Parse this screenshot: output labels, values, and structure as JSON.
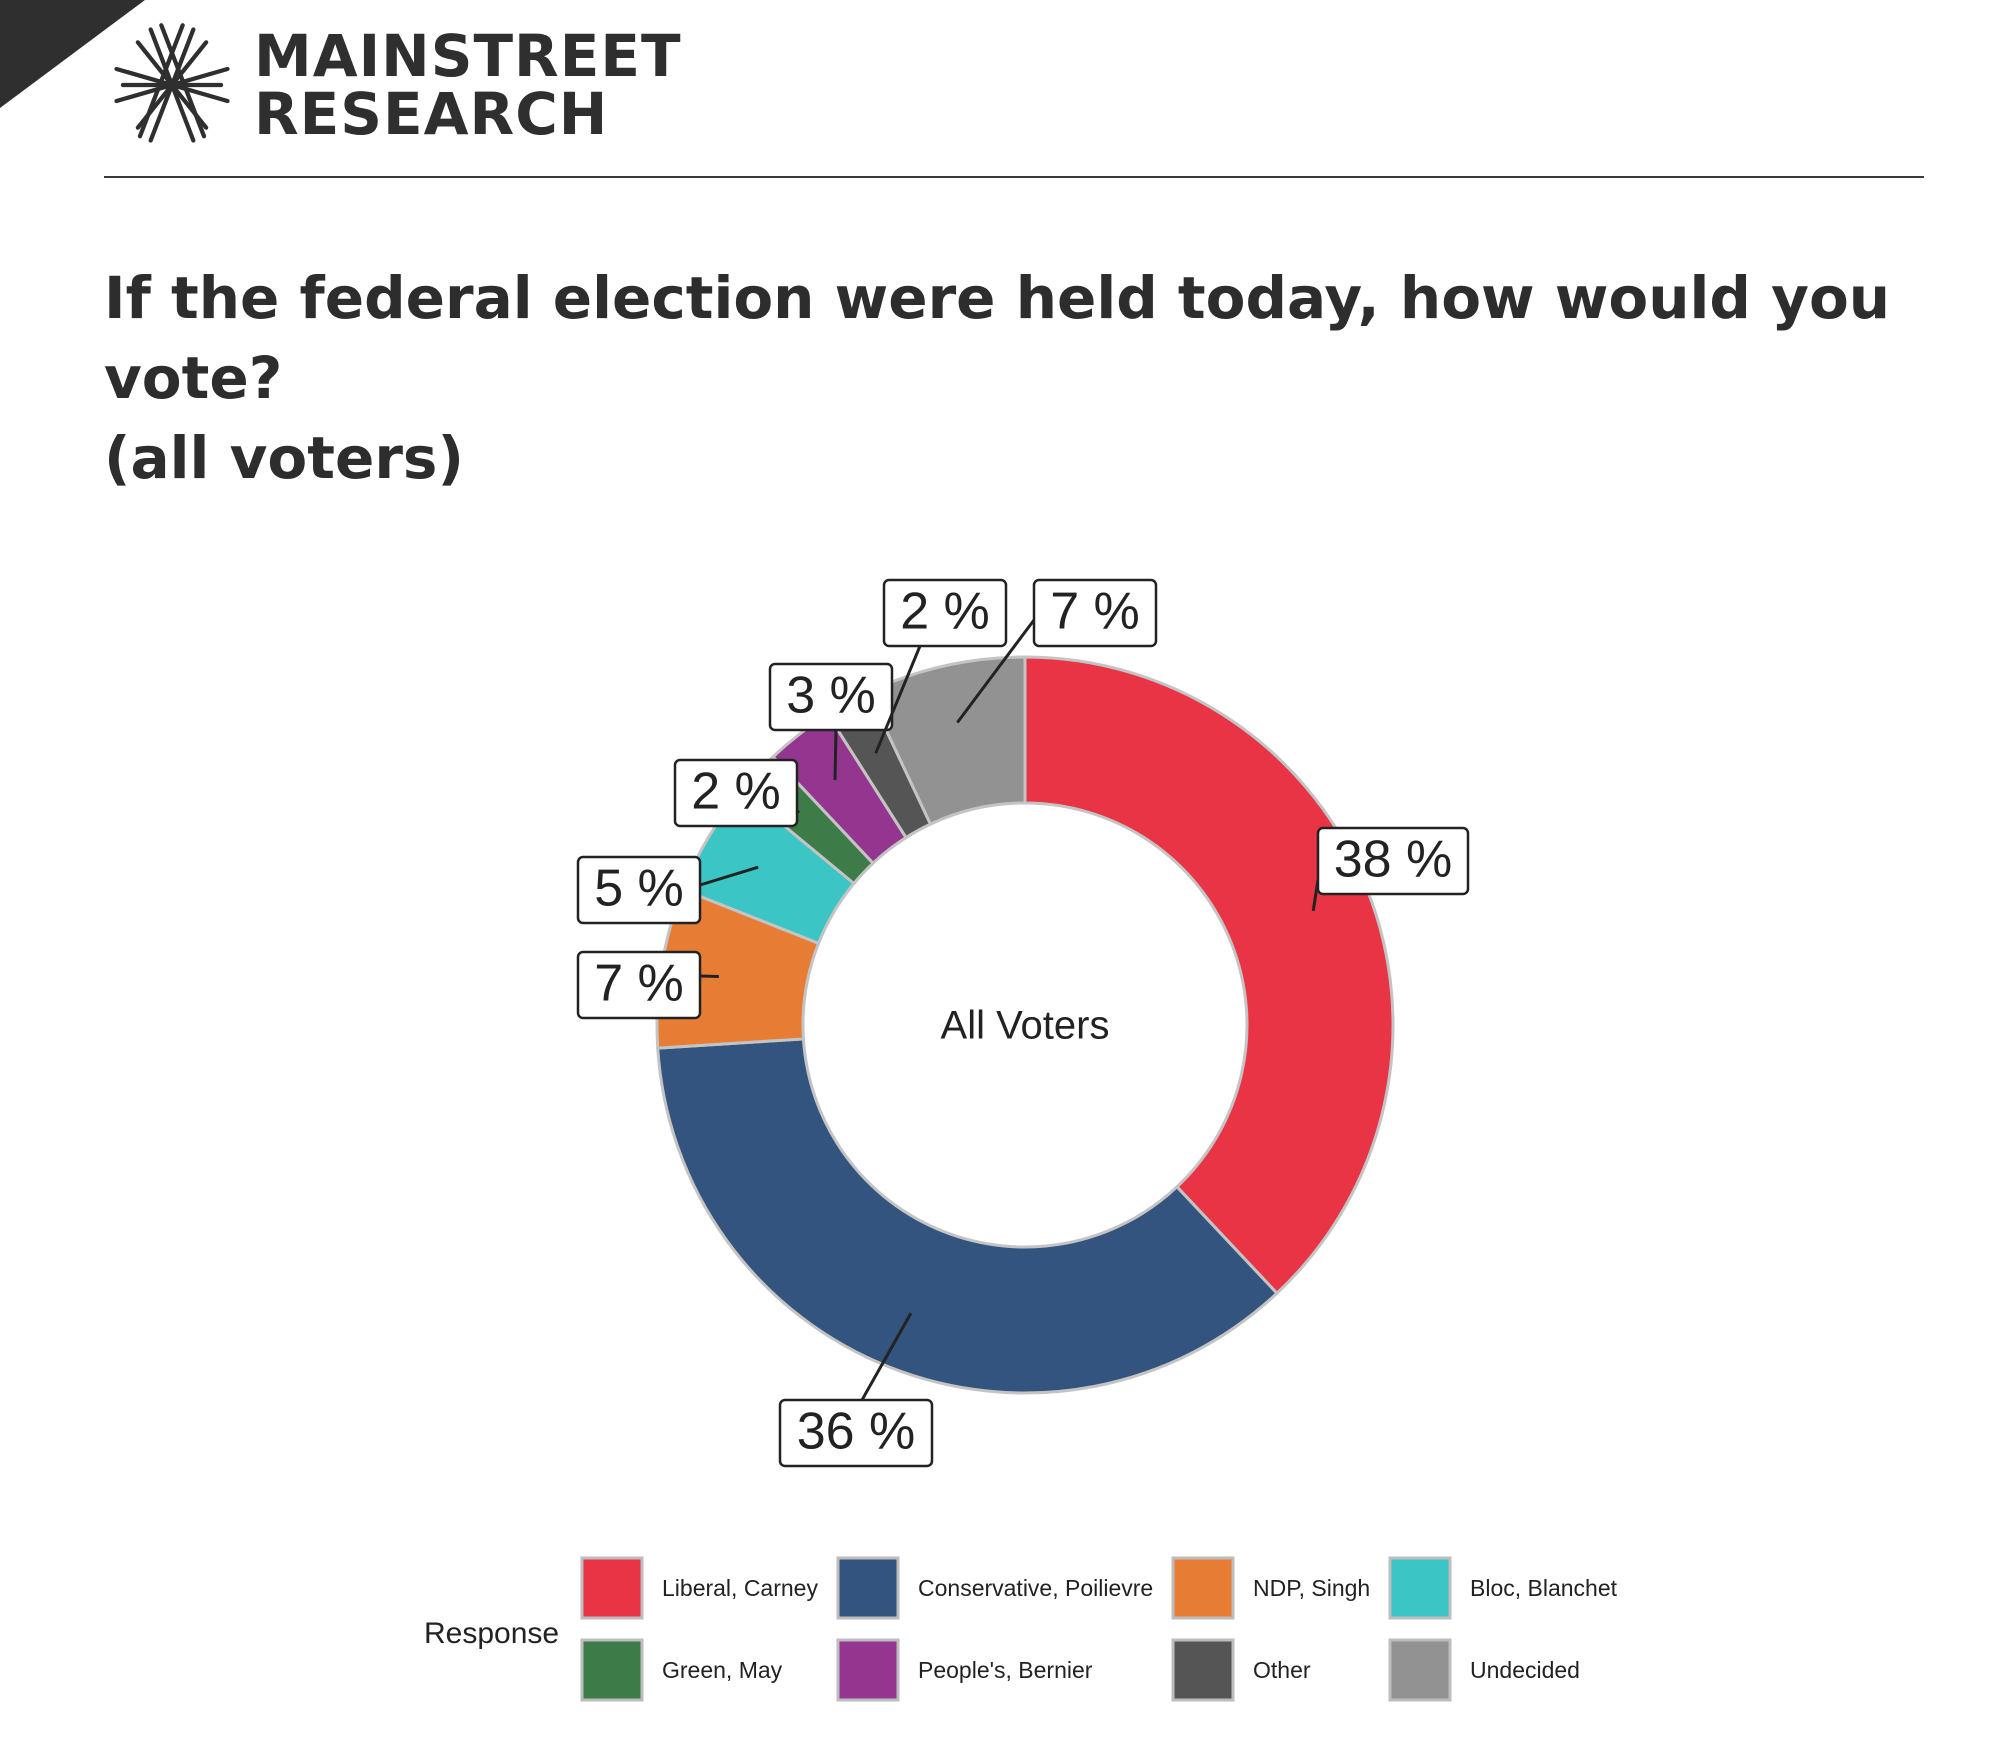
{
  "header": {
    "brand_line1": "MAINSTREET",
    "brand_line2": "RESEARCH"
  },
  "title_line1": "If the federal election were held today, how would you vote?",
  "title_line2": "(all voters)",
  "chart_data": {
    "type": "pie",
    "center_label": "All Voters",
    "legend_title": "Response",
    "legend_placement": "bottom",
    "slices": [
      {
        "name": "Liberal, Carney",
        "value": 38,
        "label": "38 %",
        "color": "#e83445"
      },
      {
        "name": "Conservative, Poilievre",
        "value": 36,
        "label": "36 %",
        "color": "#32547f"
      },
      {
        "name": "NDP, Singh",
        "value": 7,
        "label": "7 %",
        "color": "#e77c35"
      },
      {
        "name": "Bloc, Blanchet",
        "value": 5,
        "label": "5 %",
        "color": "#3cc5c5"
      },
      {
        "name": "Green, May",
        "value": 2,
        "label": "2 %",
        "color": "#3d7b48"
      },
      {
        "name": "People's, Bernier",
        "value": 3,
        "label": "3 %",
        "color": "#94368f"
      },
      {
        "name": "Other",
        "value": 2,
        "label": "2 %",
        "color": "#555555"
      },
      {
        "name": "Undecided",
        "value": 7,
        "label": "7 %",
        "color": "#929292"
      }
    ]
  }
}
